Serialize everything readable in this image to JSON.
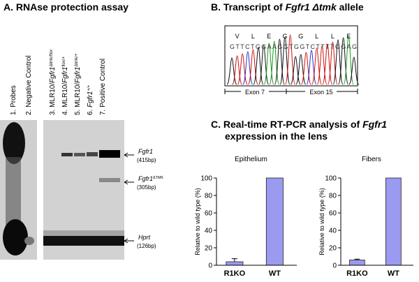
{
  "panel_a": {
    "title": "A. RNAse protection assay",
    "lanes": [
      [
        {
          "text": "1. Probes"
        }
      ],
      [
        {
          "text": "2. Negative Control"
        }
      ],
      [
        {
          "text": "3. MLR10/"
        },
        {
          "text": "Fgfr1",
          "italic": true
        },
        {
          "text": "Δtmk/flox",
          "sup": true
        }
      ],
      [
        {
          "text": "4. MLR10/"
        },
        {
          "text": "Fgfr1",
          "italic": true
        },
        {
          "text": "flox/+",
          "sup": true
        }
      ],
      [
        {
          "text": "5. MLR10/"
        },
        {
          "text": "Fgfr1",
          "italic": true
        },
        {
          "text": "Δtmk/+",
          "sup": true
        }
      ],
      [
        {
          "text": "6. "
        },
        {
          "text": "Fgfr1",
          "italic": true
        },
        {
          "text": "+/+",
          "sup": true
        }
      ],
      [
        {
          "text": "7. Positive Control"
        }
      ]
    ],
    "bands": [
      {
        "name": [
          {
            "text": "Fgfr1",
            "italic": true
          }
        ],
        "size": "(415bp)"
      },
      {
        "name": [
          {
            "text": "Fgfr1",
            "italic": true
          },
          {
            "text": "ΔTMK",
            "sup": true
          }
        ],
        "size": "(305bp)"
      },
      {
        "name": [
          {
            "text": "Hprt",
            "italic": true
          }
        ],
        "size": "(126bp)"
      }
    ]
  },
  "panel_b": {
    "title": [
      {
        "text": "B. Transcript of "
      },
      {
        "text": "Fgfr1 Δtmk",
        "italic": true
      },
      {
        "text": " allele"
      }
    ],
    "amino_acids": [
      "V",
      "L",
      "E",
      "G",
      "G",
      "L",
      "L",
      "E"
    ],
    "sequence": "GTTCTGGAAGGTGGTCTTTTGGAG",
    "exons": [
      "Exon 7",
      "Exon 15"
    ]
  },
  "panel_c": {
    "title": [
      [
        {
          "text": "C. Real-time RT-PCR analysis of "
        },
        {
          "text": "Fgfr1",
          "italic": true
        }
      ],
      [
        {
          "text": "expression in the lens"
        }
      ]
    ]
  },
  "chart_data": [
    {
      "type": "bar",
      "title": "Epithelium",
      "ylabel": "Relative to wild type (%)",
      "categories": [
        "R1KO",
        "WT"
      ],
      "values": [
        4,
        100
      ],
      "errors": [
        3.5,
        null
      ],
      "color": "#9a9af0",
      "ylim": [
        0,
        100
      ],
      "yticks": [
        0,
        20,
        40,
        60,
        80,
        100
      ]
    },
    {
      "type": "bar",
      "title": "Fibers",
      "ylabel": "Relative to wild type (%)",
      "categories": [
        "R1KO",
        "WT"
      ],
      "values": [
        6,
        100
      ],
      "errors": [
        1,
        null
      ],
      "color": "#9a9af0",
      "ylim": [
        0,
        100
      ],
      "yticks": [
        0,
        20,
        40,
        60,
        80,
        100
      ]
    }
  ]
}
